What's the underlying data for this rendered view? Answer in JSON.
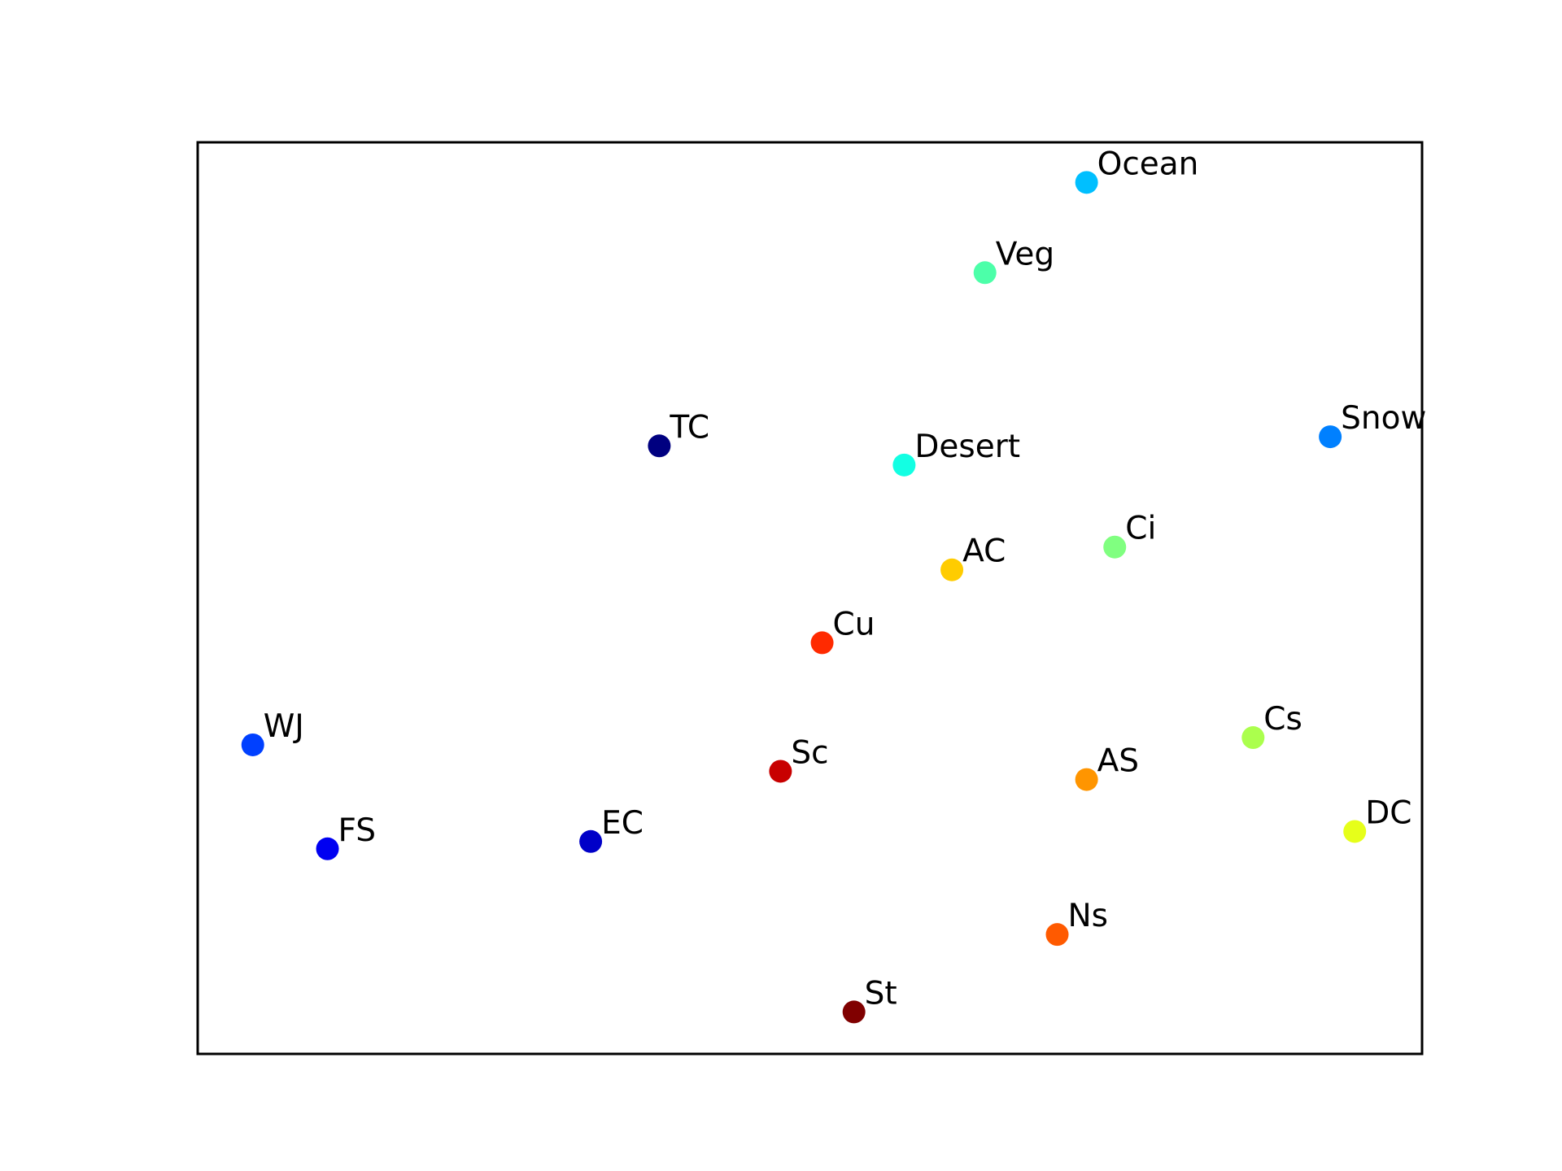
{
  "chart_data": {
    "type": "scatter",
    "title": "",
    "xlabel": "",
    "ylabel": "",
    "xlim": [
      0,
      1
    ],
    "ylim": [
      0,
      1
    ],
    "grid": false,
    "axis_ticks": false,
    "points": [
      {
        "label": "Ocean",
        "x": 0.726,
        "y": 0.956,
        "color": "#00bfff"
      },
      {
        "label": "Veg",
        "x": 0.643,
        "y": 0.857,
        "color": "#4cffa9"
      },
      {
        "label": "TC",
        "x": 0.377,
        "y": 0.667,
        "color": "#000080"
      },
      {
        "label": "Desert",
        "x": 0.577,
        "y": 0.646,
        "color": "#13ffe3"
      },
      {
        "label": "Snow",
        "x": 0.925,
        "y": 0.677,
        "color": "#0080ff"
      },
      {
        "label": "Ci",
        "x": 0.749,
        "y": 0.556,
        "color": "#80ff80"
      },
      {
        "label": "AC",
        "x": 0.616,
        "y": 0.531,
        "color": "#ffcc00"
      },
      {
        "label": "Cu",
        "x": 0.51,
        "y": 0.451,
        "color": "#ff2a00"
      },
      {
        "label": "WJ",
        "x": 0.045,
        "y": 0.339,
        "color": "#0040ff"
      },
      {
        "label": "Sc",
        "x": 0.476,
        "y": 0.31,
        "color": "#c80000"
      },
      {
        "label": "Cs",
        "x": 0.862,
        "y": 0.347,
        "color": "#abff4d"
      },
      {
        "label": "AS",
        "x": 0.726,
        "y": 0.301,
        "color": "#ff9500"
      },
      {
        "label": "FS",
        "x": 0.106,
        "y": 0.225,
        "color": "#0000f1"
      },
      {
        "label": "EC",
        "x": 0.321,
        "y": 0.233,
        "color": "#0000c8"
      },
      {
        "label": "DC",
        "x": 0.945,
        "y": 0.244,
        "color": "#e6ff1a"
      },
      {
        "label": "Ns",
        "x": 0.702,
        "y": 0.131,
        "color": "#ff5a00"
      },
      {
        "label": "St",
        "x": 0.536,
        "y": 0.046,
        "color": "#800000"
      }
    ]
  }
}
